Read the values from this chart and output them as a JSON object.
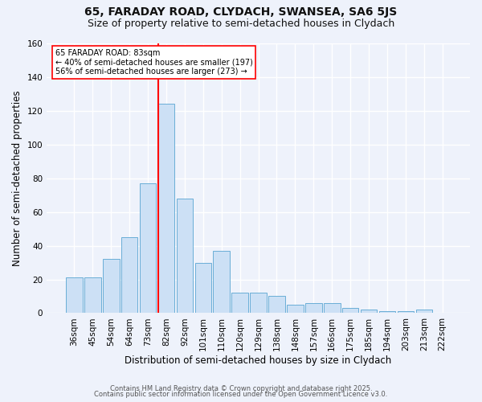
{
  "title1": "65, FARADAY ROAD, CLYDACH, SWANSEA, SA6 5JS",
  "title2": "Size of property relative to semi-detached houses in Clydach",
  "xlabel": "Distribution of semi-detached houses by size in Clydach",
  "ylabel": "Number of semi-detached properties",
  "categories": [
    "36sqm",
    "45sqm",
    "54sqm",
    "64sqm",
    "73sqm",
    "82sqm",
    "92sqm",
    "101sqm",
    "110sqm",
    "120sqm",
    "129sqm",
    "138sqm",
    "148sqm",
    "157sqm",
    "166sqm",
    "175sqm",
    "185sqm",
    "194sqm",
    "203sqm",
    "213sqm",
    "222sqm"
  ],
  "values": [
    21,
    21,
    32,
    45,
    77,
    124,
    68,
    30,
    37,
    12,
    12,
    10,
    5,
    6,
    6,
    3,
    2,
    1,
    1,
    2,
    0
  ],
  "bar_color": "#cce0f5",
  "bar_edge_color": "#6aaed6",
  "red_line_index": 5,
  "annotation_title": "65 FARADAY ROAD: 83sqm",
  "annotation_line1": "← 40% of semi-detached houses are smaller (197)",
  "annotation_line2": "56% of semi-detached houses are larger (273) →",
  "ylim": [
    0,
    160
  ],
  "yticks": [
    0,
    20,
    40,
    60,
    80,
    100,
    120,
    140,
    160
  ],
  "footer1": "Contains HM Land Registry data © Crown copyright and database right 2025.",
  "footer2": "Contains public sector information licensed under the Open Government Licence v3.0.",
  "bg_color": "#eef2fb",
  "plot_bg_color": "#eef2fb",
  "grid_color": "#ffffff",
  "title_fontsize": 10,
  "subtitle_fontsize": 9,
  "axis_label_fontsize": 8.5,
  "tick_fontsize": 7.5,
  "footer_fontsize": 6
}
